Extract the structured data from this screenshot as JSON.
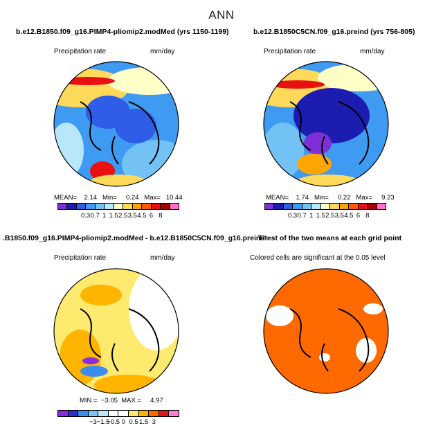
{
  "title": "ANN",
  "panels": [
    {
      "title": "b.e12.B1850.f09_g16.PIMP4-pliomip2.modMed (yrs 1150-1199)",
      "variable": "Precipitation rate",
      "units": "mm/day",
      "stats": "MEAN=    2.14   Min=     0.24   Max=   10.44",
      "colorbar_labels": [
        "0.3",
        "0.7",
        "1",
        "1.5",
        "2.5",
        "3.5",
        "4.5",
        "6",
        "8"
      ]
    },
    {
      "title": "b.e12.B1850C5CN.f09_g16.preind (yrs 756-805)",
      "variable": "Precipitation rate",
      "units": "mm/day",
      "stats": "MEAN=    1.74   Min=     0.22   Max=     9.23",
      "colorbar_labels": [
        "0.3",
        "0.7",
        "1",
        "1.5",
        "2.5",
        "3.5",
        "4.5",
        "6",
        "8"
      ]
    },
    {
      "title": ".B1850.f09_g16.PIMP4-pliomip2.modMed - b.e12.B1850C5CN.f09_g16.preind",
      "variable": "Precipitation rate",
      "units": "mm/day",
      "stats": "MIN =  −3.05  MAX =     4.97",
      "colorbar_labels": [
        "−3",
        "−1.5",
        "−0.5",
        "0",
        "0.5",
        "1.5",
        "3"
      ]
    },
    {
      "title": "T-test of the two means at each grid point",
      "subtitle": "Colored cells are significant at the 0.05 level"
    }
  ],
  "colors": {
    "abs_scale": [
      "#7f2fd6",
      "#1c1cb0",
      "#2f5de8",
      "#3f9bf2",
      "#73c2f5",
      "#b8e6fa",
      "#ffffc8",
      "#ffd95a",
      "#ffa500",
      "#ff5a00",
      "#e81010",
      "#a80000",
      "#ff70c8"
    ],
    "diff_scale": [
      "#8a2be2",
      "#3030d0",
      "#3c8cf0",
      "#7cc4f6",
      "#bfe6fa",
      "#ffffff",
      "#ffffff",
      "#ffea70",
      "#ffb400",
      "#ff6a00",
      "#e01818",
      "#ff80d0"
    ],
    "ttest_fill": "#ff6a00"
  }
}
